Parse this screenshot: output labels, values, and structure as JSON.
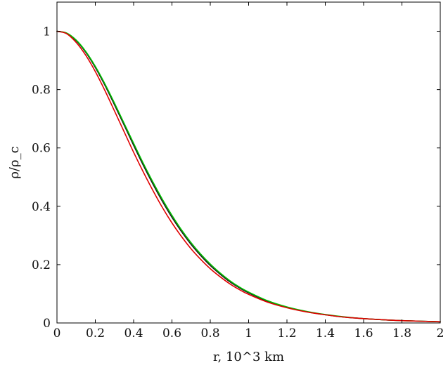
{
  "chart_data": {
    "type": "line",
    "title": "",
    "xlabel": "r, 10^3 km",
    "ylabel": "ρ/ρ_c",
    "xlim": [
      0,
      2
    ],
    "ylim": [
      0,
      1.1
    ],
    "grid": false,
    "legend": "none",
    "x_ticks": [
      "0",
      "0.2",
      "0.4",
      "0.6",
      "0.8",
      "1",
      "1.2",
      "1.4",
      "1.6",
      "1.8",
      "2"
    ],
    "y_ticks": [
      "0",
      "0.2",
      "0.4",
      "0.6",
      "0.8",
      "1"
    ],
    "x": [
      0,
      0.05,
      0.1,
      0.15,
      0.2,
      0.25,
      0.3,
      0.35,
      0.4,
      0.45,
      0.5,
      0.55,
      0.6,
      0.65,
      0.7,
      0.75,
      0.8,
      0.85,
      0.9,
      0.95,
      1.0,
      1.1,
      1.2,
      1.3,
      1.4,
      1.5,
      1.6,
      1.7,
      1.8,
      1.9,
      2.0
    ],
    "series": [
      {
        "color": "#1a1a1a",
        "values": [
          1.0,
          0.993,
          0.968,
          0.928,
          0.876,
          0.815,
          0.748,
          0.679,
          0.609,
          0.541,
          0.477,
          0.417,
          0.362,
          0.313,
          0.269,
          0.231,
          0.197,
          0.168,
          0.142,
          0.121,
          0.103,
          0.074,
          0.054,
          0.039,
          0.028,
          0.02,
          0.015,
          0.011,
          0.008,
          0.006,
          0.004
        ]
      },
      {
        "color": "#00c000",
        "values": [
          1.0,
          0.994,
          0.97,
          0.931,
          0.88,
          0.82,
          0.754,
          0.685,
          0.616,
          0.548,
          0.484,
          0.424,
          0.369,
          0.319,
          0.275,
          0.236,
          0.202,
          0.172,
          0.146,
          0.124,
          0.106,
          0.076,
          0.055,
          0.04,
          0.029,
          0.021,
          0.015,
          0.011,
          0.008,
          0.006,
          0.004
        ]
      },
      {
        "color": "#e00000",
        "values": [
          1.0,
          0.992,
          0.962,
          0.918,
          0.862,
          0.797,
          0.727,
          0.656,
          0.585,
          0.518,
          0.455,
          0.396,
          0.343,
          0.296,
          0.254,
          0.218,
          0.186,
          0.159,
          0.135,
          0.115,
          0.098,
          0.071,
          0.052,
          0.038,
          0.028,
          0.02,
          0.015,
          0.011,
          0.008,
          0.006,
          0.004
        ]
      }
    ]
  }
}
